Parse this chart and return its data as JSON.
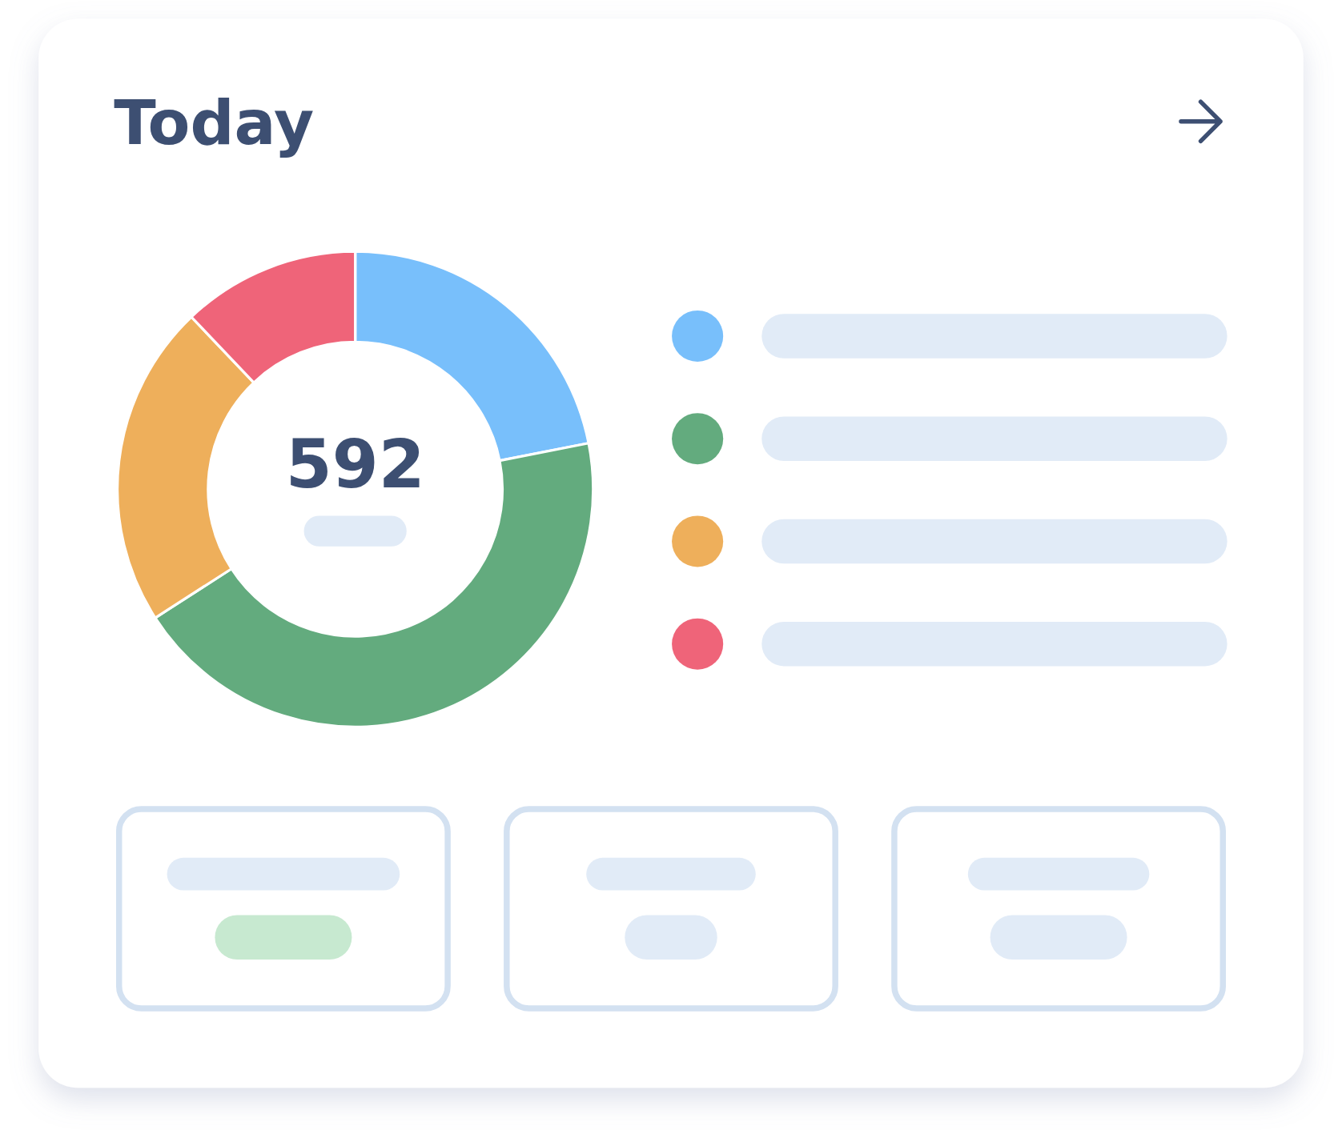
{
  "chart_data": {
    "type": "donut",
    "title": "Today",
    "categories": [
      null,
      null,
      null,
      null
    ],
    "values": [
      21.9,
      44.0,
      22.0,
      12.1
    ],
    "colors": [
      "#78bffb",
      "#63ab7e",
      "#eeaf5b",
      "#ef6479"
    ],
    "annotations": [
      "592"
    ]
  }
}
